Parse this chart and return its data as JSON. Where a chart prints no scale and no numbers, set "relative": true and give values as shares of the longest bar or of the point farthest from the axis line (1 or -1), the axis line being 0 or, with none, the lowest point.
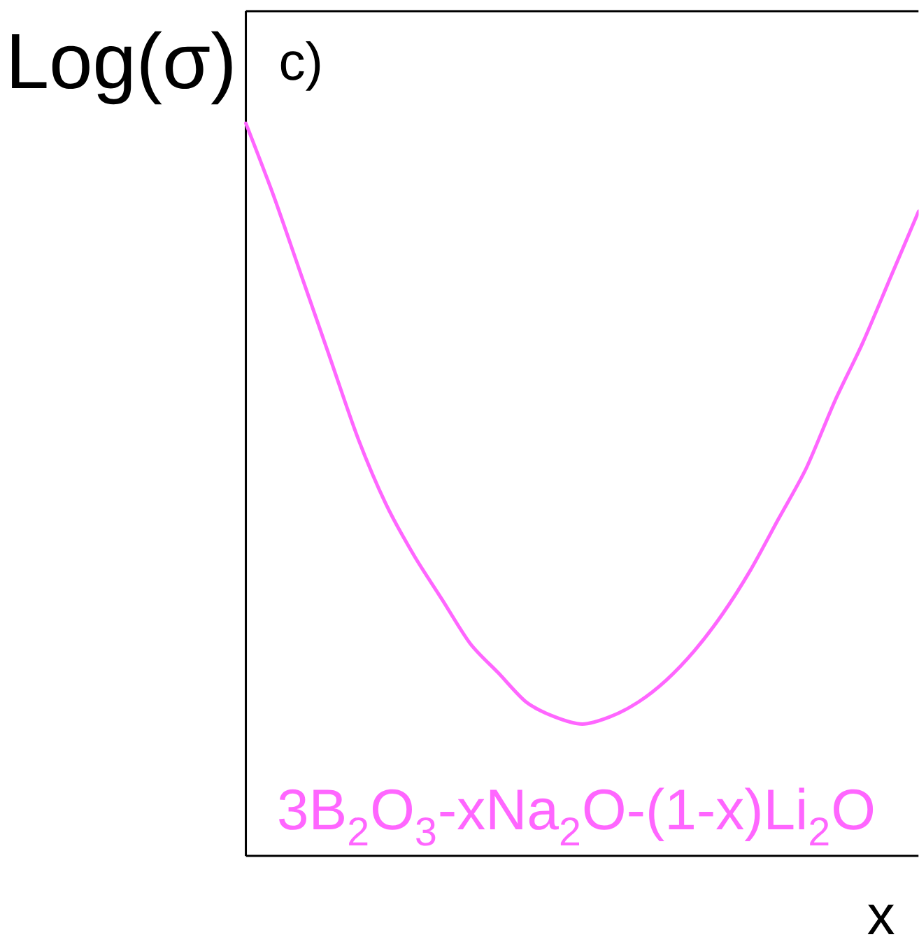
{
  "chart_data": {
    "type": "line",
    "relative": true,
    "title": "c)",
    "xlabel": "x",
    "ylabel": "Log(σ)",
    "categories": [
      null,
      null,
      null,
      null,
      null,
      null,
      null,
      null,
      null,
      null,
      null,
      null,
      null,
      null,
      null,
      null,
      null,
      null,
      null,
      null,
      null,
      null,
      null,
      null,
      null
    ],
    "series": [
      {
        "name": "3B$_{2}$O$_{3}$-xNa$_{2}$O-(1-x)Li$_{2}$O",
        "color": "#ff66ff",
        "values": [
          1.0,
          0.9,
          0.79,
          0.68,
          0.57,
          0.48,
          0.41,
          0.35,
          0.29,
          0.25,
          0.21,
          0.19,
          0.18,
          0.19,
          0.21,
          0.24,
          0.28,
          0.33,
          0.39,
          0.46,
          0.53,
          0.62,
          0.7,
          0.79,
          0.88
        ]
      }
    ]
  }
}
